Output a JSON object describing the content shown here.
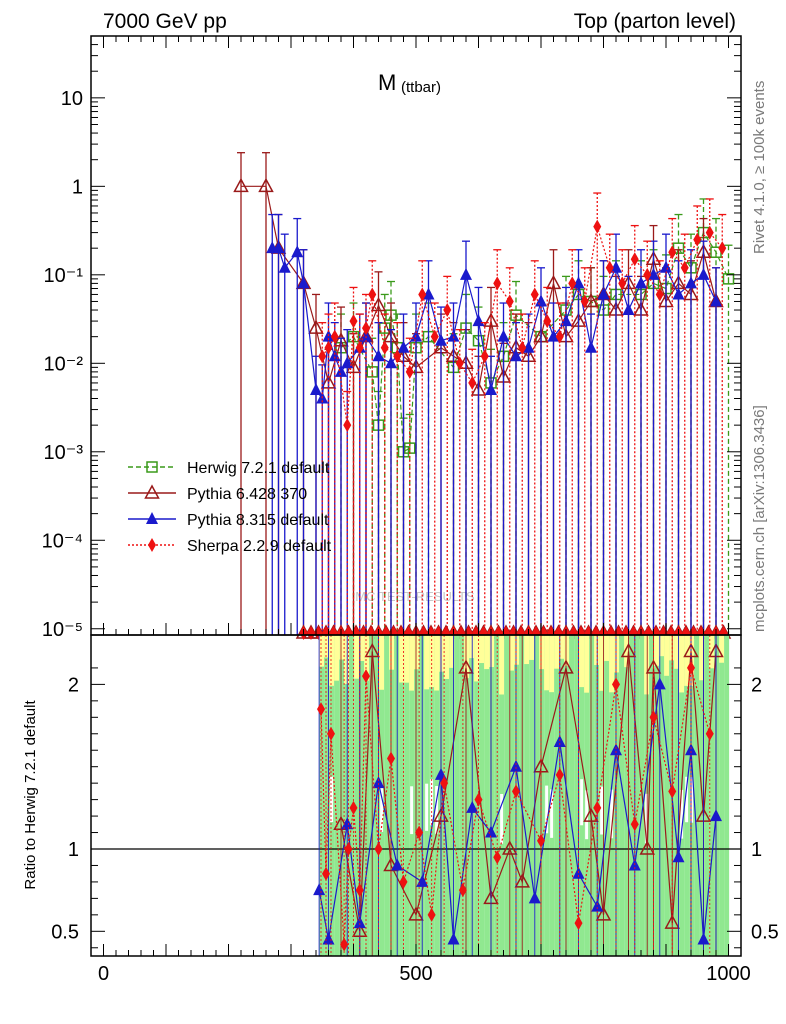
{
  "header": {
    "left": "7000 GeV pp",
    "right": "Top (parton level)"
  },
  "side_text": {
    "rivet": "Rivet 4.1.0, ≥ 100k events",
    "mcplots": "mcplots.cern.ch [arXiv:1306.3436]"
  },
  "chart_data": [
    {
      "type": "line",
      "title": "M (ttbar)",
      "title_main": "M",
      "title_sub": "(ttbar)",
      "xlabel": "",
      "ylabel": "",
      "yscale": "log",
      "xlim": [
        -20,
        1020
      ],
      "ylim": [
        8.5e-06,
        50
      ],
      "ytick_labels": [
        "10",
        "1",
        "10⁻¹",
        "10⁻²",
        "10⁻³",
        "10⁻⁴",
        "10⁻⁵"
      ],
      "ytick_values": [
        10,
        1,
        0.1,
        0.01,
        0.001,
        0.0001,
        1e-05
      ],
      "legend_position": "middle-left",
      "watermark": "MC TEST-RESULTS",
      "series": [
        {
          "name": "Herwig 7.2.1 default",
          "color": "#3a9a1a",
          "marker": "open-square",
          "line": "dashed",
          "x": [
            380,
            400,
            430,
            440,
            450,
            460,
            470,
            480,
            490,
            500,
            520,
            560,
            580,
            600,
            620,
            640,
            660,
            700,
            740,
            760,
            780,
            800,
            820,
            860,
            880,
            900,
            920,
            940,
            960,
            980,
            1000
          ],
          "y": [
            0.015,
            0.02,
            0.008,
            0.002,
            0.025,
            0.035,
            0.015,
            0.001,
            0.0011,
            0.015,
            0.02,
            0.009,
            0.025,
            0.018,
            0.006,
            0.012,
            0.035,
            0.02,
            0.04,
            0.06,
            0.05,
            0.04,
            0.06,
            0.06,
            0.08,
            0.07,
            0.2,
            0.12,
            0.3,
            0.18,
            0.09
          ]
        },
        {
          "name": "Pythia 6.428 370",
          "color": "#9a1a1a",
          "marker": "open-triangle",
          "line": "solid",
          "x": [
            220,
            260,
            280,
            320,
            340,
            360,
            380,
            400,
            420,
            440,
            460,
            480,
            500,
            540,
            560,
            580,
            600,
            620,
            640,
            660,
            680,
            700,
            720,
            740,
            760,
            780,
            800,
            820,
            840,
            860,
            880,
            900,
            920,
            940,
            960,
            980
          ],
          "y": [
            1.0,
            1.0,
            0.2,
            0.08,
            0.025,
            0.006,
            0.018,
            0.009,
            0.02,
            0.045,
            0.02,
            0.012,
            0.009,
            0.015,
            0.012,
            0.01,
            0.005,
            0.03,
            0.007,
            0.015,
            0.012,
            0.02,
            0.08,
            0.02,
            0.03,
            0.05,
            0.06,
            0.04,
            0.08,
            0.04,
            0.15,
            0.05,
            0.08,
            0.06,
            0.18,
            0.05
          ]
        },
        {
          "name": "Pythia 8.315 default",
          "color": "#1a1acc",
          "marker": "filled-triangle",
          "line": "solid",
          "x": [
            270,
            280,
            290,
            310,
            320,
            340,
            350,
            360,
            370,
            380,
            390,
            410,
            420,
            440,
            460,
            480,
            500,
            520,
            540,
            560,
            580,
            600,
            620,
            640,
            660,
            680,
            700,
            720,
            740,
            760,
            780,
            800,
            820,
            840,
            860,
            880,
            900,
            920,
            940,
            960,
            980
          ],
          "y": [
            0.2,
            0.2,
            0.12,
            0.18,
            0.08,
            0.005,
            0.004,
            0.02,
            0.012,
            0.008,
            0.01,
            0.015,
            0.02,
            0.012,
            0.01,
            0.015,
            0.02,
            0.06,
            0.018,
            0.02,
            0.1,
            0.03,
            0.005,
            0.02,
            0.012,
            0.015,
            0.05,
            0.02,
            0.03,
            0.08,
            0.015,
            0.06,
            0.12,
            0.04,
            0.08,
            0.1,
            0.12,
            0.06,
            0.08,
            0.1,
            0.05
          ]
        },
        {
          "name": "Sherpa 2.2.9 default",
          "color": "#ee1111",
          "marker": "filled-diamond",
          "line": "dotted",
          "x": [
            350,
            360,
            370,
            390,
            400,
            410,
            420,
            430,
            450,
            470,
            490,
            510,
            530,
            550,
            570,
            590,
            610,
            630,
            650,
            670,
            690,
            710,
            730,
            750,
            770,
            790,
            810,
            830,
            850,
            870,
            890,
            910,
            930,
            950,
            970,
            990
          ],
          "y": [
            0.012,
            0.015,
            0.02,
            0.002,
            0.03,
            0.015,
            0.025,
            0.06,
            0.015,
            0.012,
            0.008,
            0.06,
            0.02,
            0.04,
            0.01,
            0.006,
            0.012,
            0.08,
            0.05,
            0.015,
            0.06,
            0.03,
            0.02,
            0.08,
            0.05,
            0.35,
            0.12,
            0.08,
            0.15,
            0.1,
            0.06,
            0.18,
            0.12,
            0.25,
            0.3,
            0.2
          ]
        }
      ]
    },
    {
      "type": "line",
      "title": "",
      "xlabel": "",
      "ylabel": "Ratio to Herwig 7.2.1 default",
      "xlim": [
        -20,
        1020
      ],
      "ylim": [
        0.35,
        2.3
      ],
      "x_tick_labels": [
        "0",
        "500",
        "1000"
      ],
      "x_tick_values": [
        0,
        500,
        1000
      ],
      "ytick_labels": [
        "2",
        "1",
        "0.5"
      ],
      "ytick_values": [
        2,
        1,
        0.5
      ],
      "reference_line": 1,
      "uncertainty_band_colors": [
        "#90e890",
        "#ffff99"
      ],
      "series": [
        {
          "name": "Pythia 6.428 370",
          "color": "#9a1a1a",
          "x": [
            380,
            410,
            430,
            460,
            500,
            540,
            580,
            620,
            650,
            670,
            700,
            740,
            780,
            800,
            840,
            870,
            880,
            910,
            940,
            960,
            980
          ],
          "y": [
            1.15,
            0.5,
            2.2,
            0.9,
            0.6,
            1.2,
            2.1,
            0.7,
            1.0,
            0.8,
            1.5,
            2.1,
            1.2,
            0.6,
            2.2,
            1.0,
            2.1,
            0.55,
            2.2,
            1.2,
            2.2
          ]
        },
        {
          "name": "Pythia 8.315 default",
          "color": "#1a1acc",
          "x": [
            345,
            360,
            390,
            410,
            440,
            470,
            510,
            540,
            560,
            590,
            620,
            660,
            690,
            730,
            760,
            790,
            820,
            850,
            890,
            920,
            940,
            960,
            980
          ],
          "y": [
            0.75,
            0.45,
            1.15,
            0.55,
            1.4,
            0.9,
            0.8,
            1.45,
            0.45,
            1.25,
            1.1,
            1.5,
            0.7,
            1.65,
            0.85,
            0.65,
            1.6,
            0.9,
            2.0,
            0.95,
            1.6,
            0.45,
            1.2
          ]
        },
        {
          "name": "Sherpa 2.2.9 default",
          "color": "#ee1111",
          "x": [
            348,
            356,
            364,
            385,
            392,
            400,
            410,
            420,
            440,
            460,
            480,
            505,
            525,
            545,
            575,
            600,
            630,
            660,
            700,
            730,
            760,
            790,
            820,
            850,
            880,
            910,
            940,
            970
          ],
          "y": [
            1.85,
            0.85,
            1.7,
            0.42,
            1.0,
            1.25,
            0.75,
            2.05,
            1.0,
            1.55,
            0.8,
            1.1,
            0.6,
            1.4,
            0.75,
            1.3,
            0.95,
            1.35,
            1.05,
            1.45,
            0.55,
            1.25,
            2.0,
            1.15,
            1.8,
            1.35,
            2.1,
            1.7
          ]
        }
      ]
    }
  ]
}
